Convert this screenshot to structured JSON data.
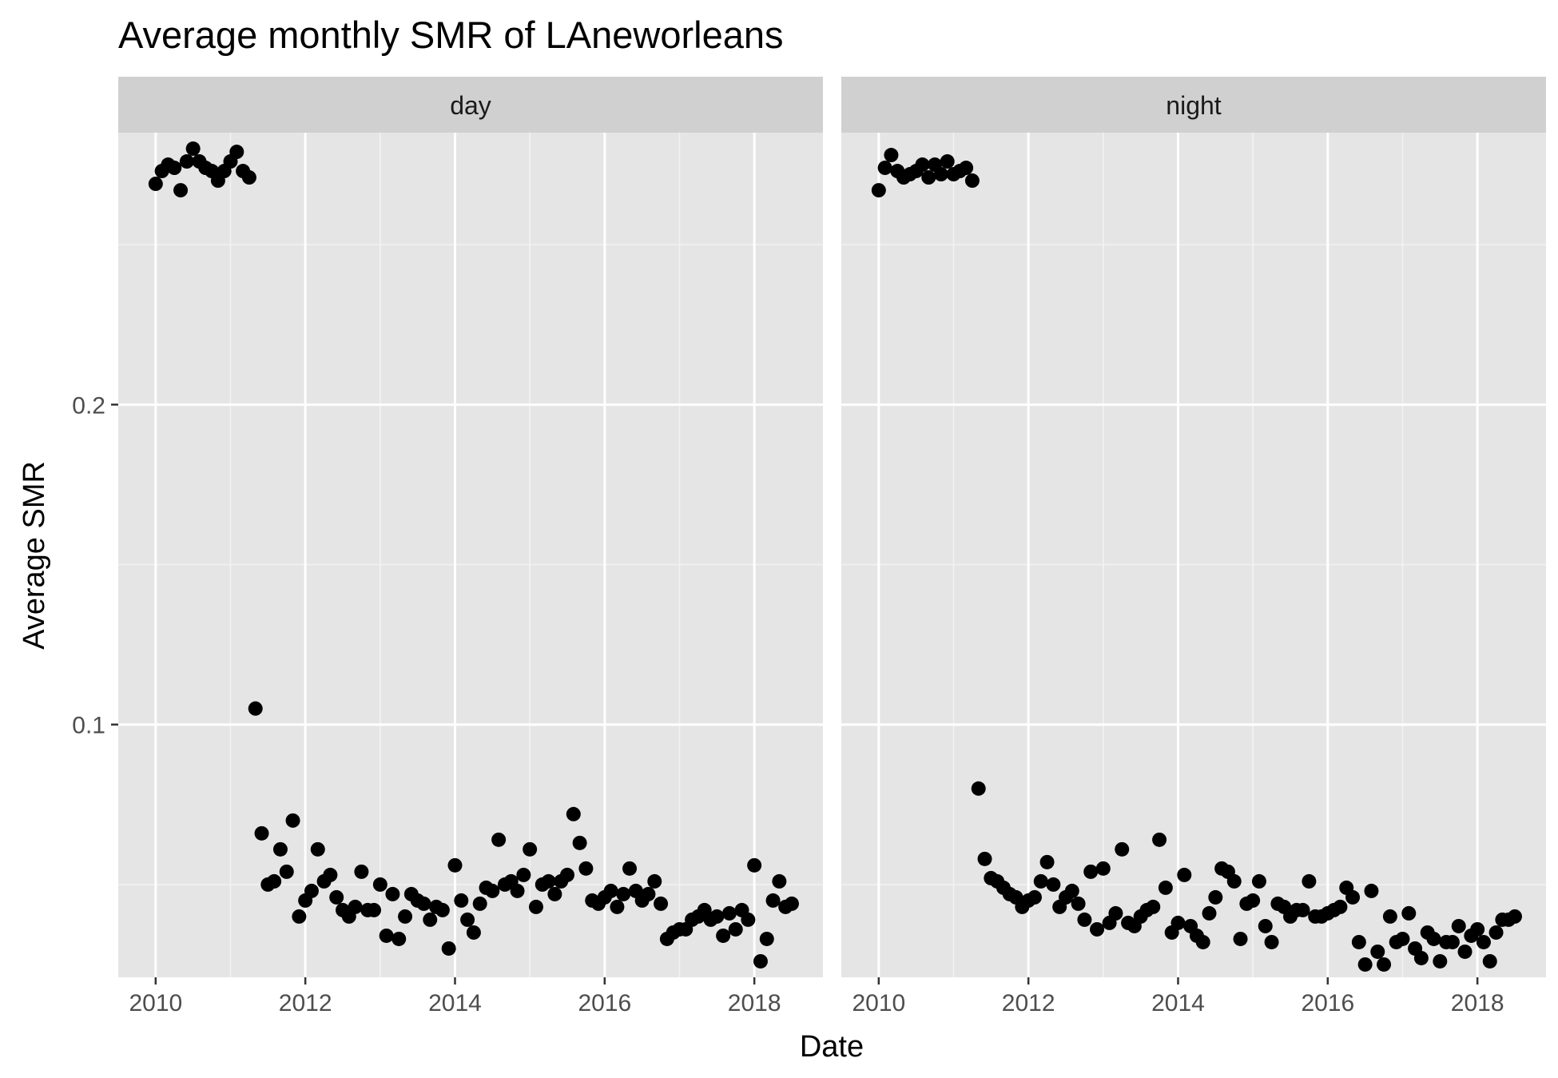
{
  "chart_data": {
    "type": "scatter",
    "title": "Average monthly SMR of LAneworleans",
    "xlabel": "Date",
    "ylabel": "Average SMR",
    "x_ticks": [
      "2010",
      "2012",
      "2014",
      "2016",
      "2018"
    ],
    "y_ticks": [
      "0.1",
      "0.2"
    ],
    "xlim": [
      "2009-07",
      "2018-12"
    ],
    "ylim": [
      0.021,
      0.285
    ],
    "grid": true,
    "legend": "none",
    "point_color": "#000000",
    "panel_background": "#e5e5e5",
    "strip_background": "#d0d0d0",
    "facets": [
      {
        "label": "day",
        "points": [
          {
            "x": "2010-01",
            "y": 0.269
          },
          {
            "x": "2010-02",
            "y": 0.273
          },
          {
            "x": "2010-03",
            "y": 0.275
          },
          {
            "x": "2010-04",
            "y": 0.274
          },
          {
            "x": "2010-05",
            "y": 0.267
          },
          {
            "x": "2010-06",
            "y": 0.276
          },
          {
            "x": "2010-07",
            "y": 0.28
          },
          {
            "x": "2010-08",
            "y": 0.276
          },
          {
            "x": "2010-09",
            "y": 0.274
          },
          {
            "x": "2010-10",
            "y": 0.273
          },
          {
            "x": "2010-11",
            "y": 0.27
          },
          {
            "x": "2010-12",
            "y": 0.273
          },
          {
            "x": "2011-01",
            "y": 0.276
          },
          {
            "x": "2011-02",
            "y": 0.279
          },
          {
            "x": "2011-03",
            "y": 0.273
          },
          {
            "x": "2011-04",
            "y": 0.271
          },
          {
            "x": "2011-05",
            "y": 0.105
          },
          {
            "x": "2011-06",
            "y": 0.066
          },
          {
            "x": "2011-07",
            "y": 0.05
          },
          {
            "x": "2011-08",
            "y": 0.051
          },
          {
            "x": "2011-09",
            "y": 0.061
          },
          {
            "x": "2011-10",
            "y": 0.054
          },
          {
            "x": "2011-11",
            "y": 0.07
          },
          {
            "x": "2011-12",
            "y": 0.04
          },
          {
            "x": "2012-01",
            "y": 0.045
          },
          {
            "x": "2012-02",
            "y": 0.048
          },
          {
            "x": "2012-03",
            "y": 0.061
          },
          {
            "x": "2012-04",
            "y": 0.051
          },
          {
            "x": "2012-05",
            "y": 0.053
          },
          {
            "x": "2012-06",
            "y": 0.046
          },
          {
            "x": "2012-07",
            "y": 0.042
          },
          {
            "x": "2012-08",
            "y": 0.04
          },
          {
            "x": "2012-09",
            "y": 0.043
          },
          {
            "x": "2012-10",
            "y": 0.054
          },
          {
            "x": "2012-11",
            "y": 0.042
          },
          {
            "x": "2012-12",
            "y": 0.042
          },
          {
            "x": "2013-01",
            "y": 0.05
          },
          {
            "x": "2013-02",
            "y": 0.034
          },
          {
            "x": "2013-03",
            "y": 0.047
          },
          {
            "x": "2013-04",
            "y": 0.033
          },
          {
            "x": "2013-05",
            "y": 0.04
          },
          {
            "x": "2013-06",
            "y": 0.047
          },
          {
            "x": "2013-07",
            "y": 0.045
          },
          {
            "x": "2013-08",
            "y": 0.044
          },
          {
            "x": "2013-09",
            "y": 0.039
          },
          {
            "x": "2013-10",
            "y": 0.043
          },
          {
            "x": "2013-11",
            "y": 0.042
          },
          {
            "x": "2013-12",
            "y": 0.03
          },
          {
            "x": "2014-01",
            "y": 0.056
          },
          {
            "x": "2014-02",
            "y": 0.045
          },
          {
            "x": "2014-03",
            "y": 0.039
          },
          {
            "x": "2014-04",
            "y": 0.035
          },
          {
            "x": "2014-05",
            "y": 0.044
          },
          {
            "x": "2014-06",
            "y": 0.049
          },
          {
            "x": "2014-07",
            "y": 0.048
          },
          {
            "x": "2014-08",
            "y": 0.064
          },
          {
            "x": "2014-09",
            "y": 0.05
          },
          {
            "x": "2014-10",
            "y": 0.051
          },
          {
            "x": "2014-11",
            "y": 0.048
          },
          {
            "x": "2014-12",
            "y": 0.053
          },
          {
            "x": "2015-01",
            "y": 0.061
          },
          {
            "x": "2015-02",
            "y": 0.043
          },
          {
            "x": "2015-03",
            "y": 0.05
          },
          {
            "x": "2015-04",
            "y": 0.051
          },
          {
            "x": "2015-05",
            "y": 0.047
          },
          {
            "x": "2015-06",
            "y": 0.051
          },
          {
            "x": "2015-07",
            "y": 0.053
          },
          {
            "x": "2015-08",
            "y": 0.072
          },
          {
            "x": "2015-09",
            "y": 0.063
          },
          {
            "x": "2015-10",
            "y": 0.055
          },
          {
            "x": "2015-11",
            "y": 0.045
          },
          {
            "x": "2015-12",
            "y": 0.044
          },
          {
            "x": "2016-01",
            "y": 0.046
          },
          {
            "x": "2016-02",
            "y": 0.048
          },
          {
            "x": "2016-03",
            "y": 0.043
          },
          {
            "x": "2016-04",
            "y": 0.047
          },
          {
            "x": "2016-05",
            "y": 0.055
          },
          {
            "x": "2016-06",
            "y": 0.048
          },
          {
            "x": "2016-07",
            "y": 0.045
          },
          {
            "x": "2016-08",
            "y": 0.047
          },
          {
            "x": "2016-09",
            "y": 0.051
          },
          {
            "x": "2016-10",
            "y": 0.044
          },
          {
            "x": "2016-11",
            "y": 0.033
          },
          {
            "x": "2016-12",
            "y": 0.035
          },
          {
            "x": "2017-01",
            "y": 0.036
          },
          {
            "x": "2017-02",
            "y": 0.036
          },
          {
            "x": "2017-03",
            "y": 0.039
          },
          {
            "x": "2017-04",
            "y": 0.04
          },
          {
            "x": "2017-05",
            "y": 0.042
          },
          {
            "x": "2017-06",
            "y": 0.039
          },
          {
            "x": "2017-07",
            "y": 0.04
          },
          {
            "x": "2017-08",
            "y": 0.034
          },
          {
            "x": "2017-09",
            "y": 0.041
          },
          {
            "x": "2017-10",
            "y": 0.036
          },
          {
            "x": "2017-11",
            "y": 0.042
          },
          {
            "x": "2017-12",
            "y": 0.039
          },
          {
            "x": "2018-01",
            "y": 0.056
          },
          {
            "x": "2018-02",
            "y": 0.026
          },
          {
            "x": "2018-03",
            "y": 0.033
          },
          {
            "x": "2018-04",
            "y": 0.045
          },
          {
            "x": "2018-05",
            "y": 0.051
          },
          {
            "x": "2018-06",
            "y": 0.043
          },
          {
            "x": "2018-07",
            "y": 0.044
          }
        ]
      },
      {
        "label": "night",
        "points": [
          {
            "x": "2010-01",
            "y": 0.267
          },
          {
            "x": "2010-02",
            "y": 0.274
          },
          {
            "x": "2010-03",
            "y": 0.278
          },
          {
            "x": "2010-04",
            "y": 0.273
          },
          {
            "x": "2010-05",
            "y": 0.271
          },
          {
            "x": "2010-06",
            "y": 0.272
          },
          {
            "x": "2010-07",
            "y": 0.273
          },
          {
            "x": "2010-08",
            "y": 0.275
          },
          {
            "x": "2010-09",
            "y": 0.271
          },
          {
            "x": "2010-10",
            "y": 0.275
          },
          {
            "x": "2010-11",
            "y": 0.272
          },
          {
            "x": "2010-12",
            "y": 0.276
          },
          {
            "x": "2011-01",
            "y": 0.272
          },
          {
            "x": "2011-02",
            "y": 0.273
          },
          {
            "x": "2011-03",
            "y": 0.274
          },
          {
            "x": "2011-04",
            "y": 0.27
          },
          {
            "x": "2011-05",
            "y": 0.08
          },
          {
            "x": "2011-06",
            "y": 0.058
          },
          {
            "x": "2011-07",
            "y": 0.052
          },
          {
            "x": "2011-08",
            "y": 0.051
          },
          {
            "x": "2011-09",
            "y": 0.049
          },
          {
            "x": "2011-10",
            "y": 0.047
          },
          {
            "x": "2011-11",
            "y": 0.046
          },
          {
            "x": "2011-12",
            "y": 0.043
          },
          {
            "x": "2012-01",
            "y": 0.045
          },
          {
            "x": "2012-02",
            "y": 0.046
          },
          {
            "x": "2012-03",
            "y": 0.051
          },
          {
            "x": "2012-04",
            "y": 0.057
          },
          {
            "x": "2012-05",
            "y": 0.05
          },
          {
            "x": "2012-06",
            "y": 0.043
          },
          {
            "x": "2012-07",
            "y": 0.046
          },
          {
            "x": "2012-08",
            "y": 0.048
          },
          {
            "x": "2012-09",
            "y": 0.044
          },
          {
            "x": "2012-10",
            "y": 0.039
          },
          {
            "x": "2012-11",
            "y": 0.054
          },
          {
            "x": "2012-12",
            "y": 0.036
          },
          {
            "x": "2013-01",
            "y": 0.055
          },
          {
            "x": "2013-02",
            "y": 0.038
          },
          {
            "x": "2013-03",
            "y": 0.041
          },
          {
            "x": "2013-04",
            "y": 0.061
          },
          {
            "x": "2013-05",
            "y": 0.038
          },
          {
            "x": "2013-06",
            "y": 0.037
          },
          {
            "x": "2013-07",
            "y": 0.04
          },
          {
            "x": "2013-08",
            "y": 0.042
          },
          {
            "x": "2013-09",
            "y": 0.043
          },
          {
            "x": "2013-10",
            "y": 0.064
          },
          {
            "x": "2013-11",
            "y": 0.049
          },
          {
            "x": "2013-12",
            "y": 0.035
          },
          {
            "x": "2014-01",
            "y": 0.038
          },
          {
            "x": "2014-02",
            "y": 0.053
          },
          {
            "x": "2014-03",
            "y": 0.037
          },
          {
            "x": "2014-04",
            "y": 0.034
          },
          {
            "x": "2014-05",
            "y": 0.032
          },
          {
            "x": "2014-06",
            "y": 0.041
          },
          {
            "x": "2014-07",
            "y": 0.046
          },
          {
            "x": "2014-08",
            "y": 0.055
          },
          {
            "x": "2014-09",
            "y": 0.054
          },
          {
            "x": "2014-10",
            "y": 0.051
          },
          {
            "x": "2014-11",
            "y": 0.033
          },
          {
            "x": "2014-12",
            "y": 0.044
          },
          {
            "x": "2015-01",
            "y": 0.045
          },
          {
            "x": "2015-02",
            "y": 0.051
          },
          {
            "x": "2015-03",
            "y": 0.037
          },
          {
            "x": "2015-04",
            "y": 0.032
          },
          {
            "x": "2015-05",
            "y": 0.044
          },
          {
            "x": "2015-06",
            "y": 0.043
          },
          {
            "x": "2015-07",
            "y": 0.04
          },
          {
            "x": "2015-08",
            "y": 0.042
          },
          {
            "x": "2015-09",
            "y": 0.042
          },
          {
            "x": "2015-10",
            "y": 0.051
          },
          {
            "x": "2015-11",
            "y": 0.04
          },
          {
            "x": "2015-12",
            "y": 0.04
          },
          {
            "x": "2016-01",
            "y": 0.041
          },
          {
            "x": "2016-02",
            "y": 0.042
          },
          {
            "x": "2016-03",
            "y": 0.043
          },
          {
            "x": "2016-04",
            "y": 0.049
          },
          {
            "x": "2016-05",
            "y": 0.046
          },
          {
            "x": "2016-06",
            "y": 0.032
          },
          {
            "x": "2016-07",
            "y": 0.025
          },
          {
            "x": "2016-08",
            "y": 0.048
          },
          {
            "x": "2016-09",
            "y": 0.029
          },
          {
            "x": "2016-10",
            "y": 0.025
          },
          {
            "x": "2016-11",
            "y": 0.04
          },
          {
            "x": "2016-12",
            "y": 0.032
          },
          {
            "x": "2017-01",
            "y": 0.033
          },
          {
            "x": "2017-02",
            "y": 0.041
          },
          {
            "x": "2017-03",
            "y": 0.03
          },
          {
            "x": "2017-04",
            "y": 0.027
          },
          {
            "x": "2017-05",
            "y": 0.035
          },
          {
            "x": "2017-06",
            "y": 0.033
          },
          {
            "x": "2017-07",
            "y": 0.026
          },
          {
            "x": "2017-08",
            "y": 0.032
          },
          {
            "x": "2017-09",
            "y": 0.032
          },
          {
            "x": "2017-10",
            "y": 0.037
          },
          {
            "x": "2017-11",
            "y": 0.029
          },
          {
            "x": "2017-12",
            "y": 0.034
          },
          {
            "x": "2018-01",
            "y": 0.036
          },
          {
            "x": "2018-02",
            "y": 0.032
          },
          {
            "x": "2018-03",
            "y": 0.026
          },
          {
            "x": "2018-04",
            "y": 0.035
          },
          {
            "x": "2018-05",
            "y": 0.039
          },
          {
            "x": "2018-06",
            "y": 0.039
          },
          {
            "x": "2018-07",
            "y": 0.04
          }
        ]
      }
    ]
  }
}
